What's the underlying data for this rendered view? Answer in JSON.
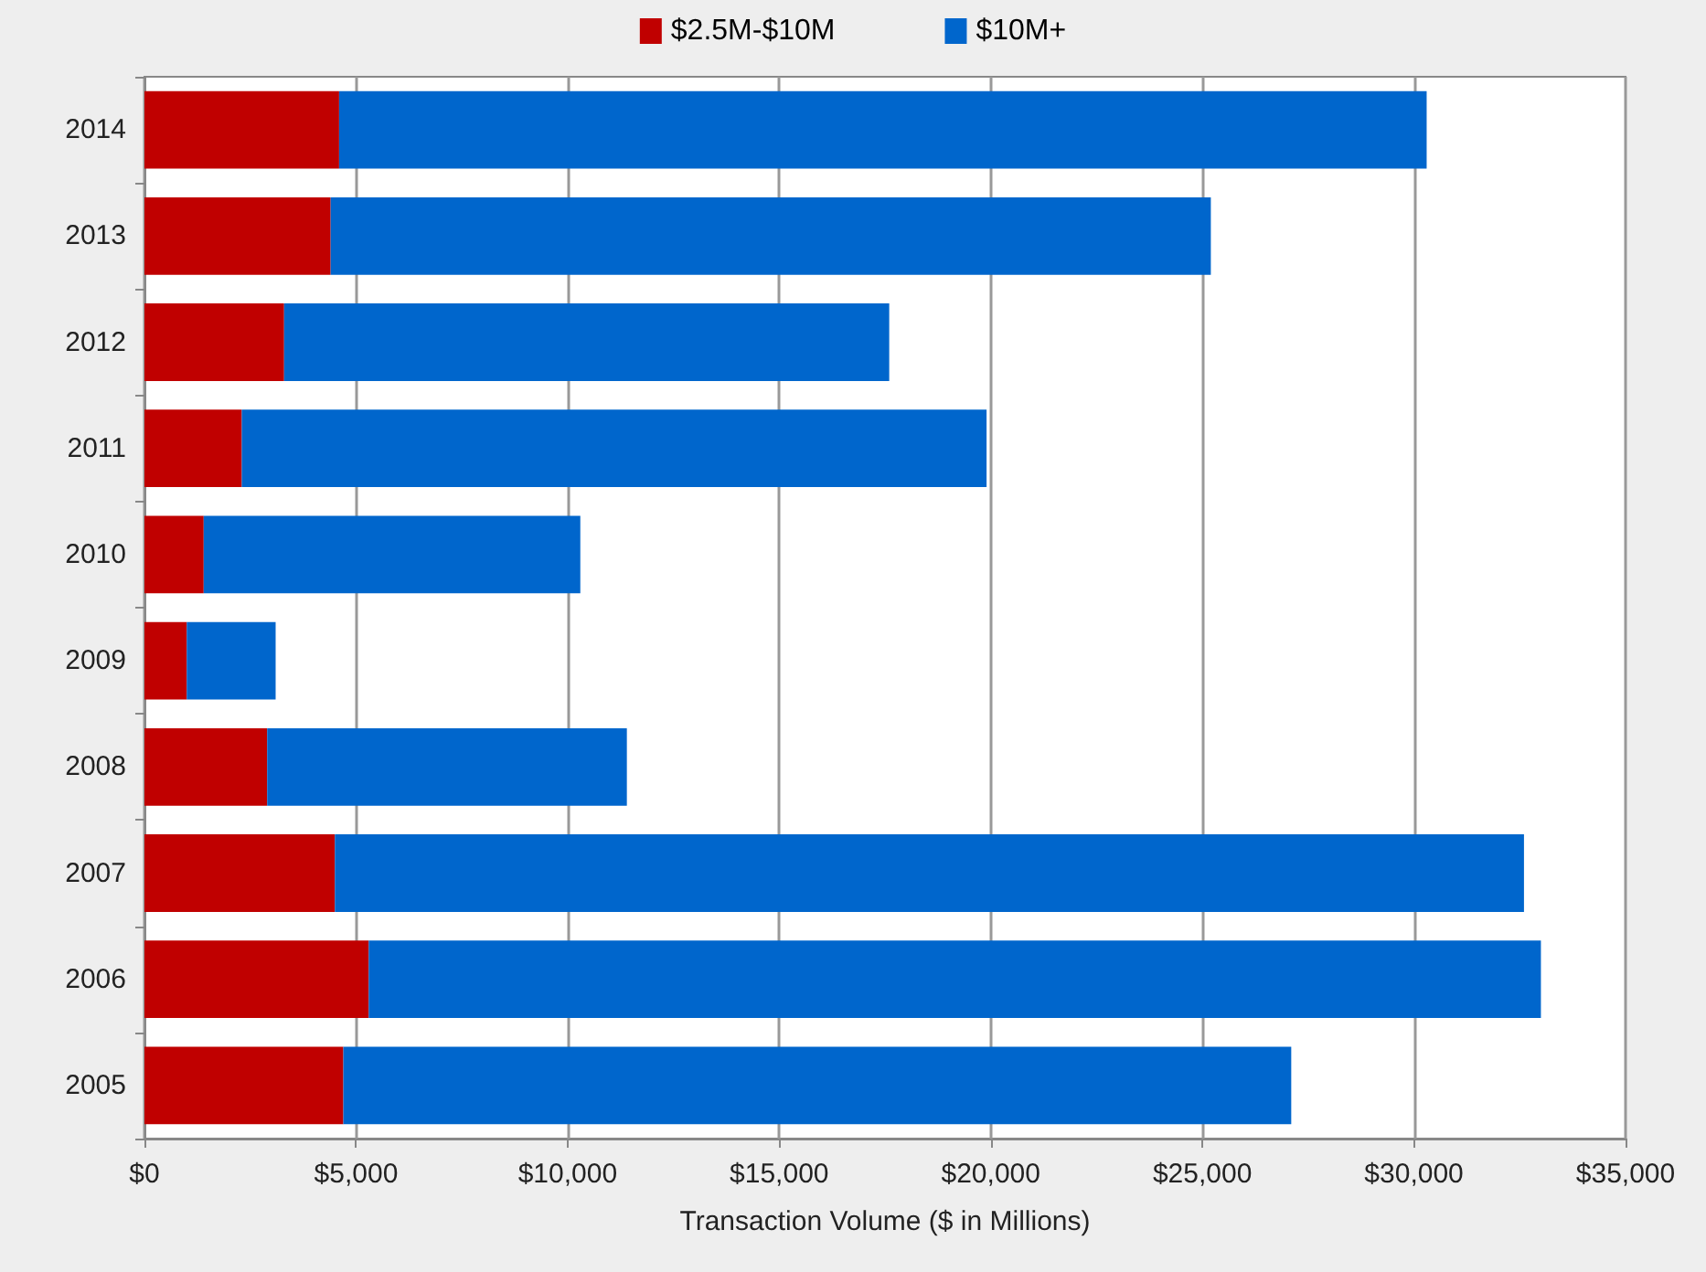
{
  "chart_data": {
    "type": "bar",
    "orientation": "horizontal",
    "stacked": true,
    "xlabel": "Transaction Volume ($ in Millions)",
    "categories": [
      "2014",
      "2013",
      "2012",
      "2011",
      "2010",
      "2009",
      "2008",
      "2007",
      "2006",
      "2005"
    ],
    "series": [
      {
        "name": "$2.5M-$10M",
        "color": "#c00000",
        "values": [
          4600,
          4400,
          3300,
          2300,
          1400,
          1000,
          2900,
          4500,
          5300,
          4700
        ]
      },
      {
        "name": "$10M+",
        "color": "#0066cc",
        "values": [
          25700,
          20800,
          14300,
          17600,
          8900,
          2100,
          8500,
          28100,
          27700,
          22400
        ]
      }
    ],
    "xlim": [
      0,
      35000
    ],
    "xticks": [
      {
        "value": 0,
        "label": "$0"
      },
      {
        "value": 5000,
        "label": "$5,000"
      },
      {
        "value": 10000,
        "label": "$10,000"
      },
      {
        "value": 15000,
        "label": "$15,000"
      },
      {
        "value": 20000,
        "label": "$20,000"
      },
      {
        "value": 25000,
        "label": "$25,000"
      },
      {
        "value": 30000,
        "label": "$30,000"
      },
      {
        "value": 35000,
        "label": "$35,000"
      }
    ],
    "grid": "x",
    "legend": "top"
  }
}
